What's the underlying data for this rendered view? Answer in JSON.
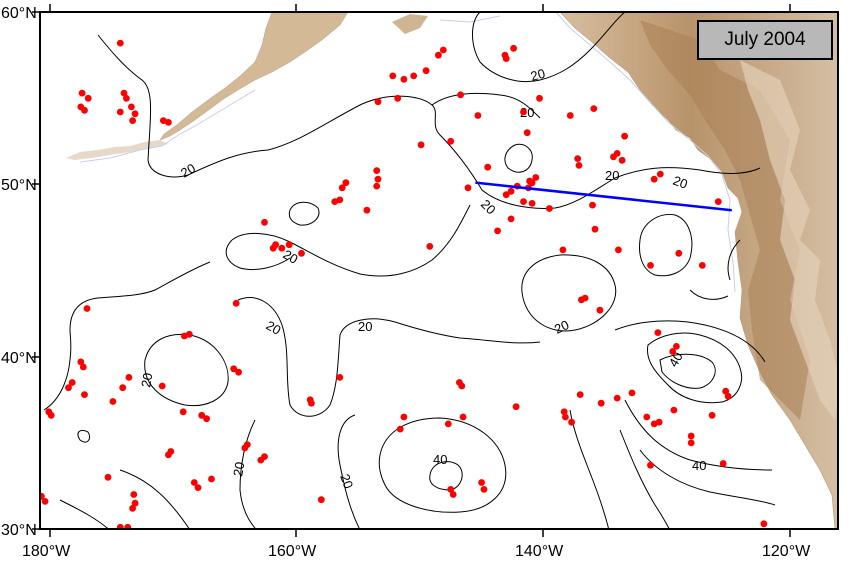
{
  "title": "July 2004",
  "axes": {
    "x_ticks": [
      "180°W",
      "160°W",
      "140°W",
      "120°W"
    ],
    "y_ticks": [
      "60°N",
      "50°N",
      "40°N",
      "30°N"
    ],
    "lon_range": [
      -180,
      -116
    ],
    "lat_range": [
      30,
      60
    ]
  },
  "colors": {
    "land": "#c9ab86",
    "land_dark": "#a57c52",
    "ocean": "#ffffff",
    "contour": "#000000",
    "points": "#ff0000",
    "transect": "#0000ff"
  },
  "contour_labels": [
    "20",
    "20",
    "20",
    "20",
    "20",
    "20",
    "20",
    "20",
    "20",
    "20",
    "20",
    "20",
    "20",
    "40",
    "40",
    "40"
  ],
  "transect": {
    "start": [
      -145.5,
      50.1
    ],
    "end": [
      -124.7,
      48.5
    ]
  },
  "observations": [
    [
      -174.3,
      58.2
    ],
    [
      -177.4,
      55.3
    ],
    [
      -176.9,
      55.0
    ],
    [
      -177.5,
      54.5
    ],
    [
      -177.2,
      54.3
    ],
    [
      -174.0,
      55.3
    ],
    [
      -173.8,
      55.0
    ],
    [
      -173.4,
      54.5
    ],
    [
      -174.3,
      54.2
    ],
    [
      -173.1,
      54.1
    ],
    [
      -173.3,
      53.7
    ],
    [
      -170.8,
      53.7
    ],
    [
      -170.4,
      53.6
    ],
    [
      -152.2,
      56.3
    ],
    [
      -151.3,
      56.1
    ],
    [
      -150.5,
      56.3
    ],
    [
      -149.5,
      56.6
    ],
    [
      -148.1,
      57.8
    ],
    [
      -148.5,
      57.5
    ],
    [
      -143.1,
      57.5
    ],
    [
      -142.4,
      57.9
    ],
    [
      -143.0,
      57.3
    ],
    [
      -146.7,
      55.2
    ],
    [
      -151.8,
      55.0
    ],
    [
      -153.4,
      54.8
    ],
    [
      -140.3,
      55.0
    ],
    [
      -141.6,
      54.2
    ],
    [
      -135.9,
      54.4
    ],
    [
      -137.8,
      54.0
    ],
    [
      -145.3,
      54.0
    ],
    [
      -141.3,
      53.0
    ],
    [
      -147.5,
      52.5
    ],
    [
      -149.9,
      52.3
    ],
    [
      -133.4,
      52.8
    ],
    [
      -134.0,
      51.8
    ],
    [
      -133.6,
      51.4
    ],
    [
      -134.3,
      51.6
    ],
    [
      -137.2,
      51.5
    ],
    [
      -137.1,
      51.1
    ],
    [
      -140.6,
      50.4
    ],
    [
      -141.1,
      50.2
    ],
    [
      -140.9,
      50.1
    ],
    [
      -144.5,
      51.0
    ],
    [
      -141.2,
      49.8
    ],
    [
      -142.1,
      49.9
    ],
    [
      -142.6,
      49.6
    ],
    [
      -143.0,
      49.4
    ],
    [
      -141.6,
      49.0
    ],
    [
      -140.9,
      48.9
    ],
    [
      -139.5,
      48.6
    ],
    [
      -136.0,
      48.8
    ],
    [
      -146.1,
      49.8
    ],
    [
      -153.5,
      50.8
    ],
    [
      -153.4,
      50.3
    ],
    [
      -153.5,
      49.9
    ],
    [
      -156.0,
      50.1
    ],
    [
      -156.3,
      49.8
    ],
    [
      -156.5,
      49.1
    ],
    [
      -156.9,
      49.0
    ],
    [
      -154.3,
      48.5
    ],
    [
      -162.6,
      47.8
    ],
    [
      -142.6,
      48.0
    ],
    [
      -143.7,
      47.3
    ],
    [
      -135.8,
      47.4
    ],
    [
      -131.0,
      50.3
    ],
    [
      -130.5,
      50.6
    ],
    [
      -125.8,
      49.0
    ],
    [
      -149.2,
      46.4
    ],
    [
      -161.7,
      46.5
    ],
    [
      -161.2,
      46.3
    ],
    [
      -160.6,
      46.5
    ],
    [
      -159.6,
      46.0
    ],
    [
      -161.9,
      46.3
    ],
    [
      -138.4,
      46.2
    ],
    [
      -136.6,
      43.4
    ],
    [
      -136.9,
      43.3
    ],
    [
      -135.4,
      42.7
    ],
    [
      -133.9,
      46.2
    ],
    [
      -131.3,
      45.3
    ],
    [
      -129.0,
      46.0
    ],
    [
      -127.1,
      45.3
    ],
    [
      -164.9,
      43.1
    ],
    [
      -177.0,
      42.8
    ],
    [
      -168.7,
      41.3
    ],
    [
      -169.1,
      41.2
    ],
    [
      -130.7,
      41.4
    ],
    [
      -129.2,
      40.6
    ],
    [
      -129.5,
      40.3
    ],
    [
      -177.5,
      39.7
    ],
    [
      -177.3,
      39.4
    ],
    [
      -165.1,
      39.3
    ],
    [
      -164.7,
      39.1
    ],
    [
      -178.2,
      38.5
    ],
    [
      -178.5,
      38.2
    ],
    [
      -173.6,
      38.8
    ],
    [
      -174.1,
      38.2
    ],
    [
      -177.2,
      37.8
    ],
    [
      -174.9,
      37.4
    ],
    [
      -170.9,
      38.3
    ],
    [
      -156.5,
      38.8
    ],
    [
      -158.9,
      37.5
    ],
    [
      -158.8,
      37.3
    ],
    [
      -146.8,
      38.5
    ],
    [
      -146.6,
      38.3
    ],
    [
      -134.0,
      37.6
    ],
    [
      -132.8,
      37.9
    ],
    [
      -137.0,
      37.8
    ],
    [
      -135.3,
      37.3
    ],
    [
      -125.2,
      38.0
    ],
    [
      -125.0,
      37.7
    ],
    [
      -129.4,
      36.9
    ],
    [
      -130.6,
      36.2
    ],
    [
      -131.0,
      36.1
    ],
    [
      -131.6,
      36.5
    ],
    [
      -126.3,
      36.6
    ],
    [
      -128.0,
      35.4
    ],
    [
      -128.0,
      35.0
    ],
    [
      -125.4,
      33.8
    ],
    [
      -167.7,
      36.6
    ],
    [
      -167.3,
      36.4
    ],
    [
      -169.2,
      36.8
    ],
    [
      -180.1,
      36.8
    ],
    [
      -179.9,
      36.6
    ],
    [
      -151.3,
      36.5
    ],
    [
      -151.6,
      35.8
    ],
    [
      -146.5,
      36.5
    ],
    [
      -147.7,
      36.1
    ],
    [
      -142.2,
      37.1
    ],
    [
      -138.3,
      36.8
    ],
    [
      -138.2,
      36.5
    ],
    [
      -137.7,
      36.2
    ],
    [
      -164.0,
      34.9
    ],
    [
      -164.2,
      34.7
    ],
    [
      -162.6,
      34.2
    ],
    [
      -162.9,
      34.0
    ],
    [
      -170.2,
      34.5
    ],
    [
      -170.4,
      34.3
    ],
    [
      -168.3,
      32.7
    ],
    [
      -168.0,
      32.4
    ],
    [
      -166.9,
      32.9
    ],
    [
      -173.2,
      32.0
    ],
    [
      -173.1,
      31.5
    ],
    [
      -173.3,
      31.2
    ],
    [
      -175.3,
      33.0
    ],
    [
      -180.7,
      31.9
    ],
    [
      -180.4,
      31.6
    ],
    [
      -174.3,
      30.1
    ],
    [
      -173.7,
      30.1
    ],
    [
      -158.0,
      31.7
    ],
    [
      -147.5,
      32.3
    ],
    [
      -147.3,
      32.0
    ],
    [
      -145.0,
      32.7
    ],
    [
      -144.8,
      32.3
    ],
    [
      -131.3,
      33.7
    ],
    [
      -122.1,
      30.3
    ]
  ]
}
